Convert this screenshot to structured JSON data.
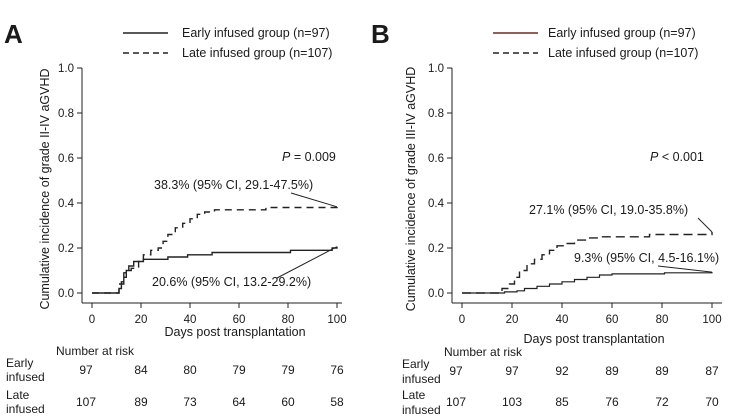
{
  "chart_data": [
    {
      "panel_label": "A",
      "type": "line",
      "xlabel": "Days post transplantation",
      "ylabel": "Cumulative incidence of grade II-IV aGVHD",
      "xlim": [
        0,
        100
      ],
      "ylim": [
        0,
        1.0
      ],
      "x_ticks": [
        0,
        20,
        40,
        60,
        80,
        100
      ],
      "y_ticks": [
        "0.0",
        "0.2",
        "0.4",
        "0.6",
        "0.8",
        "1.0"
      ],
      "legend_position": "top",
      "series": [
        {
          "name": "Early infused group (n=97)",
          "line_style": "solid",
          "color": "#222222",
          "points": [
            [
              0,
              0
            ],
            [
              10,
              0
            ],
            [
              11,
              0.02
            ],
            [
              12,
              0.05
            ],
            [
              13,
              0.09
            ],
            [
              14,
              0.1
            ],
            [
              15,
              0.12
            ],
            [
              17,
              0.14
            ],
            [
              20,
              0.14
            ],
            [
              21,
              0.15
            ],
            [
              30,
              0.15
            ],
            [
              31,
              0.16
            ],
            [
              38,
              0.16
            ],
            [
              39,
              0.17
            ],
            [
              48,
              0.17
            ],
            [
              49,
              0.18
            ],
            [
              80,
              0.18
            ],
            [
              81,
              0.19
            ],
            [
              97,
              0.19
            ],
            [
              98,
              0.2
            ],
            [
              100,
              0.206
            ]
          ]
        },
        {
          "name": "Late infused group (n=107)",
          "line_style": "dashed",
          "color": "#222222",
          "points": [
            [
              0,
              0
            ],
            [
              10,
              0
            ],
            [
              11,
              0.04
            ],
            [
              13,
              0.07
            ],
            [
              14,
              0.1
            ],
            [
              16,
              0.11
            ],
            [
              19,
              0.14
            ],
            [
              21,
              0.17
            ],
            [
              24,
              0.19
            ],
            [
              27,
              0.2
            ],
            [
              29,
              0.23
            ],
            [
              31,
              0.26
            ],
            [
              34,
              0.29
            ],
            [
              37,
              0.31
            ],
            [
              40,
              0.33
            ],
            [
              43,
              0.35
            ],
            [
              46,
              0.36
            ],
            [
              50,
              0.37
            ],
            [
              70,
              0.37
            ],
            [
              71,
              0.38
            ],
            [
              100,
              0.383
            ]
          ]
        }
      ],
      "p_value": {
        "label": "P",
        "text": " = 0.009"
      },
      "annotations": [
        {
          "text": "38.3% (95% CI, 29.1-47.5%)",
          "target": [
            100,
            0.383
          ]
        },
        {
          "text": "20.6% (95% CI, 13.2-29.2%)",
          "target": [
            100,
            0.206
          ]
        }
      ],
      "risk_table": {
        "title": "Number at risk",
        "rows": [
          {
            "label": [
              "Early",
              "infused"
            ],
            "values": [
              97,
              84,
              80,
              79,
              79,
              76
            ]
          },
          {
            "label": [
              "Late",
              "infused"
            ],
            "values": [
              107,
              89,
              73,
              64,
              60,
              58
            ]
          }
        ]
      }
    },
    {
      "panel_label": "B",
      "type": "line",
      "xlabel": "Days post transplantation",
      "ylabel": "Cumulative incidence of grade III-IV aGVHD",
      "xlim": [
        0,
        100
      ],
      "ylim": [
        0,
        1.0
      ],
      "x_ticks": [
        0,
        20,
        40,
        60,
        80,
        100
      ],
      "y_ticks": [
        "0.0",
        "0.2",
        "0.4",
        "0.6",
        "0.8",
        "1.0"
      ],
      "legend_position": "top",
      "series": [
        {
          "name": "Early infused group (n=97)",
          "line_style": "solid",
          "color": "#6b2a2a",
          "points": [
            [
              0,
              0
            ],
            [
              15,
              0
            ],
            [
              17,
              0.005
            ],
            [
              22,
              0.01
            ],
            [
              25,
              0.02
            ],
            [
              30,
              0.03
            ],
            [
              35,
              0.04
            ],
            [
              40,
              0.05
            ],
            [
              45,
              0.06
            ],
            [
              50,
              0.07
            ],
            [
              55,
              0.08
            ],
            [
              60,
              0.085
            ],
            [
              80,
              0.085
            ],
            [
              81,
              0.09
            ],
            [
              100,
              0.093
            ]
          ]
        },
        {
          "name": "Late infused group (n=107)",
          "line_style": "dashed",
          "color": "#222222",
          "points": [
            [
              0,
              0
            ],
            [
              15,
              0
            ],
            [
              16,
              0.02
            ],
            [
              19,
              0.04
            ],
            [
              21,
              0.07
            ],
            [
              23,
              0.1
            ],
            [
              26,
              0.13
            ],
            [
              29,
              0.15
            ],
            [
              32,
              0.17
            ],
            [
              35,
              0.19
            ],
            [
              38,
              0.21
            ],
            [
              41,
              0.22
            ],
            [
              45,
              0.235
            ],
            [
              50,
              0.245
            ],
            [
              55,
              0.25
            ],
            [
              70,
              0.25
            ],
            [
              75,
              0.26
            ],
            [
              100,
              0.271
            ]
          ]
        }
      ],
      "p_value": {
        "label": "P",
        "text": " < 0.001"
      },
      "annotations": [
        {
          "text": "27.1% (95% CI, 19.0-35.8%)",
          "target": [
            100,
            0.271
          ]
        },
        {
          "text": "9.3% (95% CI, 4.5-16.1%)",
          "target": [
            100,
            0.093
          ]
        }
      ],
      "risk_table": {
        "title": "Number at risk",
        "rows": [
          {
            "label": [
              "Early",
              "infused"
            ],
            "values": [
              97,
              97,
              92,
              89,
              89,
              87
            ]
          },
          {
            "label": [
              "Late",
              "infused"
            ],
            "values": [
              107,
              103,
              85,
              76,
              72,
              70
            ]
          }
        ]
      }
    }
  ]
}
